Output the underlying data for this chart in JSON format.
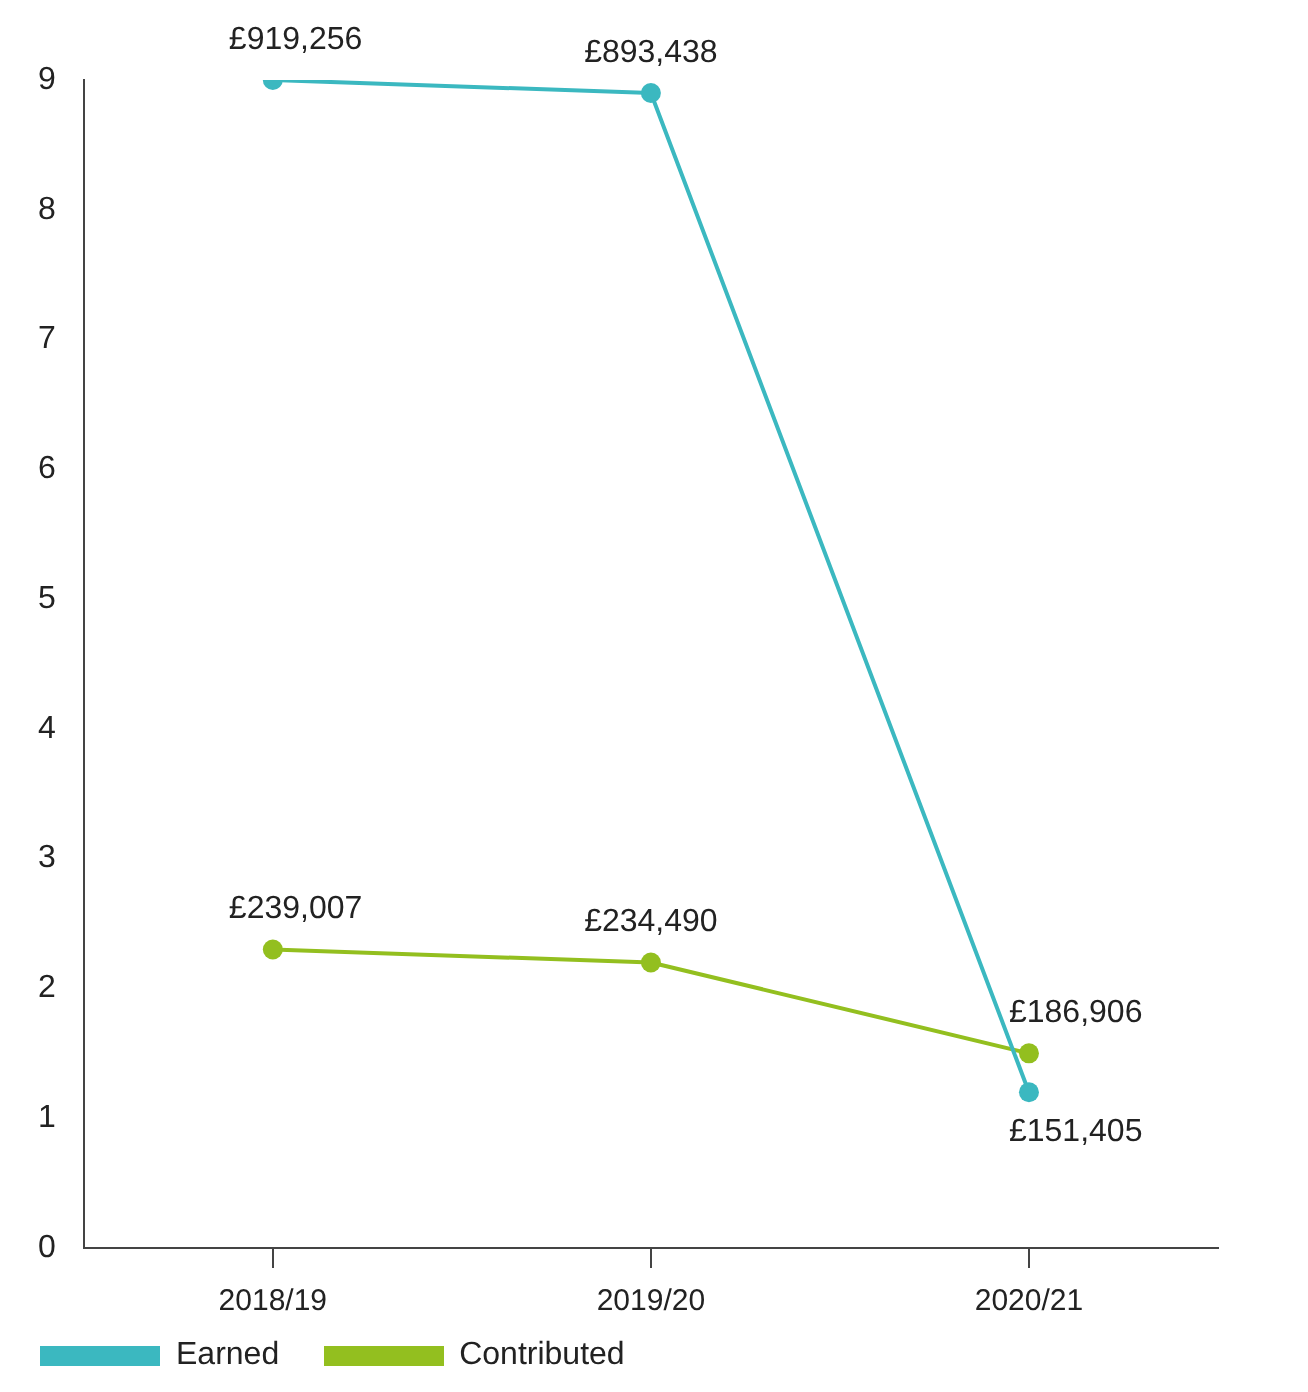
{
  "chart_data": {
    "type": "line",
    "categories": [
      "2018/19",
      "2019/20",
      "2020/21"
    ],
    "series": [
      {
        "name": "Earned",
        "color": "#3bb8c0",
        "values": [
          9.0,
          8.9,
          1.2
        ]
      },
      {
        "name": "Contributed",
        "color": "#93bf1f",
        "values": [
          2.3,
          2.2,
          1.5
        ]
      }
    ],
    "annotations": [
      {
        "text": "£919,256",
        "x": "2018/19",
        "y": 9.0
      },
      {
        "text": "£893,438",
        "x": "2019/20",
        "y": 8.9
      },
      {
        "text": "£151,405",
        "x": "2020/21",
        "y": 1.2
      },
      {
        "text": "£239,007",
        "x": "2018/19",
        "y": 2.3
      },
      {
        "text": "£234,490",
        "x": "2019/20",
        "y": 2.2
      },
      {
        "text": "£186,906",
        "x": "2020/21",
        "y": 1.5
      }
    ],
    "ylim": [
      0,
      9
    ],
    "yticks": [
      0,
      1,
      2,
      3,
      4,
      5,
      6,
      7,
      8,
      9
    ],
    "grid": false,
    "legend": "bottom left",
    "marker": "circle",
    "line_style": "solid"
  }
}
